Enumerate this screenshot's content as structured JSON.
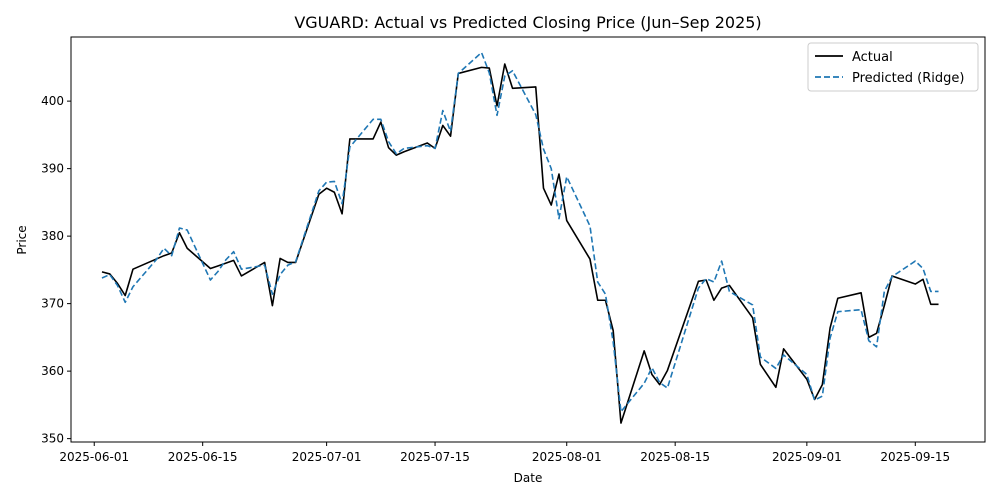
{
  "chart_data": {
    "type": "line",
    "title": "VGUARD: Actual vs Predicted Closing Price (Jun–Sep 2025)",
    "xlabel": "Date",
    "ylabel": "Price",
    "xlim": [
      "2025-05-29",
      "2025-09-24"
    ],
    "ylim": [
      349.5,
      409.5
    ],
    "x_ticks": [
      "2025-06-01",
      "2025-06-15",
      "2025-07-01",
      "2025-07-15",
      "2025-08-01",
      "2025-08-15",
      "2025-09-01",
      "2025-09-15"
    ],
    "y_ticks": [
      350,
      360,
      370,
      380,
      390,
      400
    ],
    "grid": false,
    "legend": "top-right",
    "x": [
      "2025-06-02",
      "2025-06-03",
      "2025-06-04",
      "2025-06-05",
      "2025-06-06",
      "2025-06-09",
      "2025-06-10",
      "2025-06-11",
      "2025-06-12",
      "2025-06-13",
      "2025-06-16",
      "2025-06-17",
      "2025-06-18",
      "2025-06-19",
      "2025-06-20",
      "2025-06-23",
      "2025-06-24",
      "2025-06-25",
      "2025-06-26",
      "2025-06-27",
      "2025-06-30",
      "2025-07-01",
      "2025-07-02",
      "2025-07-03",
      "2025-07-04",
      "2025-07-07",
      "2025-07-08",
      "2025-07-09",
      "2025-07-10",
      "2025-07-11",
      "2025-07-14",
      "2025-07-15",
      "2025-07-16",
      "2025-07-17",
      "2025-07-18",
      "2025-07-21",
      "2025-07-22",
      "2025-07-23",
      "2025-07-24",
      "2025-07-25",
      "2025-07-28",
      "2025-07-29",
      "2025-07-30",
      "2025-07-31",
      "2025-08-01",
      "2025-08-04",
      "2025-08-05",
      "2025-08-06",
      "2025-08-07",
      "2025-08-08",
      "2025-08-11",
      "2025-08-12",
      "2025-08-13",
      "2025-08-14",
      "2025-08-18",
      "2025-08-19",
      "2025-08-20",
      "2025-08-21",
      "2025-08-22",
      "2025-08-25",
      "2025-08-26",
      "2025-08-28",
      "2025-08-29",
      "2025-09-01",
      "2025-09-02",
      "2025-09-03",
      "2025-09-04",
      "2025-09-05",
      "2025-09-08",
      "2025-09-09",
      "2025-09-10",
      "2025-09-11",
      "2025-09-12",
      "2025-09-15",
      "2025-09-16",
      "2025-09-17",
      "2025-09-18"
    ],
    "series": [
      {
        "name": "Actual",
        "color": "#000000",
        "dash": "solid",
        "values": [
          374.7,
          374.4,
          373.0,
          371.2,
          375.1,
          376.6,
          377.1,
          377.5,
          380.5,
          378.2,
          375.2,
          375.6,
          376.0,
          376.4,
          374.1,
          376.1,
          369.7,
          376.7,
          376.1,
          376.1,
          386.2,
          387.1,
          386.5,
          383.3,
          394.4,
          394.4,
          396.9,
          393.1,
          392.0,
          392.5,
          393.8,
          393.0,
          396.4,
          394.8,
          404.1,
          405.0,
          404.9,
          399.3,
          405.5,
          401.9,
          402.1,
          387.1,
          384.6,
          389.2,
          382.3,
          376.6,
          370.5,
          370.5,
          366.0,
          352.3,
          363.0,
          359.5,
          358.0,
          360.1,
          373.3,
          373.5,
          370.5,
          372.3,
          372.7,
          367.9,
          361.0,
          357.6,
          363.3,
          358.8,
          355.8,
          358.0,
          366.4,
          370.8,
          371.6,
          365.0,
          365.6,
          369.7,
          374.1,
          372.9,
          373.6,
          369.9,
          369.9
        ]
      },
      {
        "name": "Predicted (Ridge)",
        "color": "#1f77b4",
        "dash": "dashed",
        "values": [
          373.8,
          374.3,
          372.7,
          370.2,
          372.5,
          376.5,
          378.2,
          377.1,
          381.2,
          380.9,
          373.5,
          374.8,
          376.5,
          377.7,
          375.1,
          375.7,
          371.4,
          374.3,
          375.7,
          376.2,
          386.7,
          388.0,
          388.1,
          384.8,
          393.2,
          397.3,
          397.3,
          394.0,
          392.2,
          393.0,
          393.4,
          393.0,
          398.6,
          395.5,
          404.1,
          407.2,
          404.2,
          397.9,
          403.7,
          404.5,
          398.0,
          392.9,
          390.0,
          382.6,
          388.8,
          381.5,
          373.2,
          371.4,
          364.3,
          354.0,
          358.2,
          360.5,
          358.3,
          357.5,
          372.3,
          373.7,
          373.2,
          376.3,
          371.8,
          369.8,
          362.1,
          360.4,
          362.4,
          359.5,
          355.7,
          356.3,
          364.9,
          368.8,
          369.1,
          364.5,
          363.6,
          371.8,
          374.0,
          376.3,
          375.2,
          371.8,
          371.8
        ]
      }
    ]
  }
}
